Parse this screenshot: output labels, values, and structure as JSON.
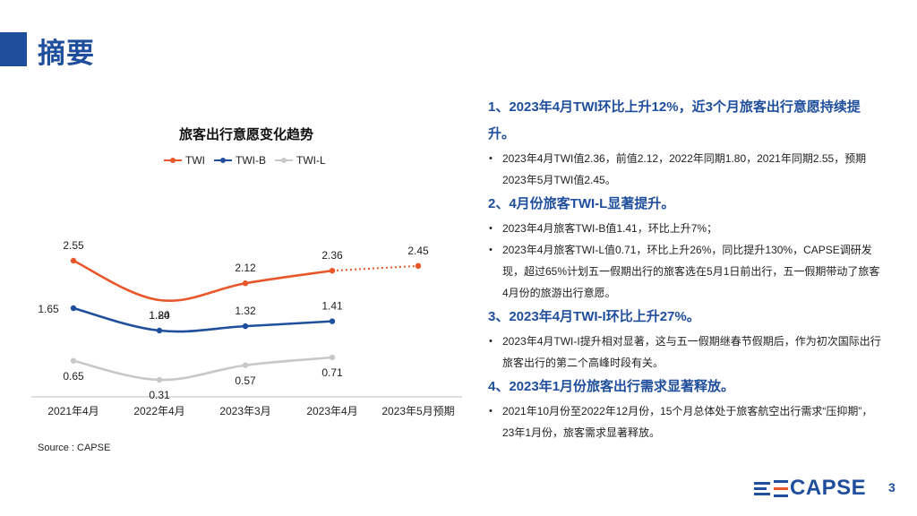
{
  "header": {
    "title": "摘要"
  },
  "chart_data": {
    "type": "line",
    "title": "旅客出行意愿变化趋势",
    "categories": [
      "2021年4月",
      "2022年4月",
      "2023年3月",
      "2023年4月",
      "2023年5月预期"
    ],
    "series": [
      {
        "name": "TWI",
        "color": "#e8562a",
        "values": [
          2.55,
          1.8,
          2.12,
          2.36,
          2.45
        ],
        "forecast_from_index": 3
      },
      {
        "name": "TWI-B",
        "color": "#1f4e9c",
        "values": [
          1.65,
          1.24,
          1.32,
          1.41,
          null
        ]
      },
      {
        "name": "TWI-L",
        "color": "#c8c8c8",
        "values": [
          0.65,
          0.31,
          0.57,
          0.71,
          null
        ]
      }
    ],
    "legend_position": "top-center",
    "grid": false
  },
  "source": "Source : CAPSE",
  "summary": {
    "items": [
      {
        "heading": "1、2023年4月TWI环比上升12%，近3个月旅客出行意愿持续提升。",
        "bullets": [
          "2023年4月TWI值2.36，前值2.12，2022年同期1.80，2021年同期2.55，预期2023年5月TWI值2.45。"
        ]
      },
      {
        "heading": "2、4月份旅客TWI-L显著提升。",
        "bullets": [
          "2023年4月旅客TWI-B值1.41，环比上升7%；",
          "2023年4月旅客TWI-L值0.71，环比上升26%，同比提升130%，CAPSE调研发现，超过65%计划五一假期出行的旅客选在5月1日前出行，五一假期带动了旅客4月份的旅游出行意愿。"
        ]
      },
      {
        "heading": "3、2023年4月TWI-I环比上升27%。",
        "bullets": [
          "2023年4月TWI-I提升相对显著，这与五一假期继春节假期后，作为初次国际出行旅客出行的第二个高峰时段有关。"
        ]
      },
      {
        "heading": "4、2023年1月份旅客出行需求显著释放。",
        "bullets": [
          "2021年10月份至2022年12月份，15个月总体处于旅客航空出行需求“压抑期”，23年1月份，旅客需求显著释放。"
        ]
      }
    ]
  },
  "footer": {
    "logo_text": "CAPSE",
    "page_number": "3",
    "logo_color": "#1f4e9c",
    "logo_accent": "#e8562a"
  }
}
